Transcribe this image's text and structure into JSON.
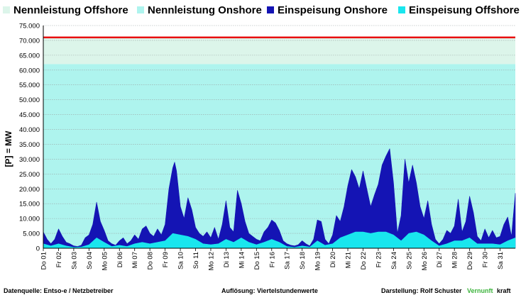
{
  "chart_data": {
    "type": "area",
    "ylabel": "[P] = MW",
    "ylim": [
      0,
      75000
    ],
    "yticks": [
      "0",
      "5.000",
      "10.000",
      "15.000",
      "20.000",
      "25.000",
      "30.000",
      "35.000",
      "40.000",
      "45.000",
      "50.000",
      "55.000",
      "60.000",
      "65.000",
      "70.000",
      "75.000"
    ],
    "ytick_values": [
      0,
      5000,
      10000,
      15000,
      20000,
      25000,
      30000,
      35000,
      40000,
      45000,
      50000,
      55000,
      60000,
      65000,
      70000,
      75000
    ],
    "xticks": [
      "Do 01",
      "Fr 02",
      "Sa 03",
      "So 04",
      "Mo 05",
      "Di 06",
      "Mi 07",
      "Do 08",
      "Fr 09",
      "Sa 10",
      "So 11",
      "Mo 12",
      "Di 13",
      "Mi 14",
      "Do 15",
      "Fr 16",
      "Sa 17",
      "So 18",
      "Mo 19",
      "Di 20",
      "Mi 21",
      "Do 22",
      "Fr 23",
      "Sa 24",
      "So 25",
      "Mo 26",
      "Di 27",
      "Mi 28",
      "Do 29",
      "Fr 30",
      "Sa 31"
    ],
    "x_days": [
      1,
      2,
      3,
      4,
      5,
      6,
      7,
      8,
      9,
      10,
      11,
      12,
      13,
      14,
      15,
      16,
      17,
      18,
      19,
      20,
      21,
      22,
      23,
      24,
      25,
      26,
      27,
      28,
      29,
      30,
      31
    ],
    "x_range": [
      1,
      32
    ],
    "legend": [
      {
        "name": "Nennleistung Offshore",
        "color": "#dcf5ea"
      },
      {
        "name": "Nennleistung Onshore",
        "color": "#aef4ee"
      },
      {
        "name": "Einspeisung Onshore",
        "color": "#1414b4"
      },
      {
        "name": "Einspeisung Offshore",
        "color": "#19e6ee"
      }
    ],
    "nennleistung_onshore": 62000,
    "nennleistung_total": 71000,
    "total_line_color": "#e81010",
    "series_total": {
      "name": "Einspeisung Onshore",
      "points": [
        [
          1.0,
          5500
        ],
        [
          1.25,
          3000
        ],
        [
          1.5,
          1500
        ],
        [
          1.75,
          3000
        ],
        [
          2.0,
          6500
        ],
        [
          2.25,
          4000
        ],
        [
          2.5,
          2000
        ],
        [
          2.75,
          1500
        ],
        [
          3.0,
          800
        ],
        [
          3.25,
          600
        ],
        [
          3.5,
          1000
        ],
        [
          3.75,
          3500
        ],
        [
          4.0,
          4500
        ],
        [
          4.25,
          8000
        ],
        [
          4.5,
          15500
        ],
        [
          4.75,
          9000
        ],
        [
          5.0,
          6000
        ],
        [
          5.25,
          2500
        ],
        [
          5.5,
          1500
        ],
        [
          5.75,
          1000
        ],
        [
          6.0,
          2500
        ],
        [
          6.25,
          3500
        ],
        [
          6.5,
          1500
        ],
        [
          6.75,
          2500
        ],
        [
          7.0,
          4500
        ],
        [
          7.25,
          3000
        ],
        [
          7.5,
          6500
        ],
        [
          7.75,
          7500
        ],
        [
          8.0,
          5000
        ],
        [
          8.25,
          4000
        ],
        [
          8.5,
          6500
        ],
        [
          8.75,
          4500
        ],
        [
          9.0,
          8000
        ],
        [
          9.25,
          20000
        ],
        [
          9.5,
          27000
        ],
        [
          9.625,
          29000
        ],
        [
          9.75,
          26000
        ],
        [
          10.0,
          14000
        ],
        [
          10.25,
          10000
        ],
        [
          10.5,
          17000
        ],
        [
          10.75,
          13000
        ],
        [
          11.0,
          7000
        ],
        [
          11.25,
          5000
        ],
        [
          11.5,
          4000
        ],
        [
          11.75,
          5500
        ],
        [
          12.0,
          3500
        ],
        [
          12.25,
          7000
        ],
        [
          12.5,
          3000
        ],
        [
          12.75,
          8000
        ],
        [
          13.0,
          16000
        ],
        [
          13.25,
          7000
        ],
        [
          13.5,
          5500
        ],
        [
          13.75,
          19500
        ],
        [
          14.0,
          15000
        ],
        [
          14.25,
          9000
        ],
        [
          14.5,
          5000
        ],
        [
          14.75,
          4000
        ],
        [
          15.0,
          3000
        ],
        [
          15.25,
          2500
        ],
        [
          15.5,
          5500
        ],
        [
          15.75,
          7000
        ],
        [
          16.0,
          9500
        ],
        [
          16.25,
          8500
        ],
        [
          16.5,
          6000
        ],
        [
          16.75,
          2500
        ],
        [
          17.0,
          1500
        ],
        [
          17.25,
          1000
        ],
        [
          17.5,
          800
        ],
        [
          17.75,
          1200
        ],
        [
          18.0,
          2500
        ],
        [
          18.25,
          1500
        ],
        [
          18.5,
          800
        ],
        [
          18.75,
          3000
        ],
        [
          19.0,
          9500
        ],
        [
          19.25,
          9000
        ],
        [
          19.5,
          3000
        ],
        [
          19.75,
          1500
        ],
        [
          20.0,
          4500
        ],
        [
          20.25,
          11000
        ],
        [
          20.5,
          9000
        ],
        [
          20.75,
          14000
        ],
        [
          21.0,
          21000
        ],
        [
          21.25,
          26500
        ],
        [
          21.5,
          24000
        ],
        [
          21.75,
          20000
        ],
        [
          22.0,
          26000
        ],
        [
          22.25,
          20000
        ],
        [
          22.5,
          14000
        ],
        [
          22.75,
          18000
        ],
        [
          23.0,
          21500
        ],
        [
          23.25,
          28000
        ],
        [
          23.5,
          31000
        ],
        [
          23.75,
          33500
        ],
        [
          24.0,
          22000
        ],
        [
          24.25,
          5000
        ],
        [
          24.5,
          11000
        ],
        [
          24.75,
          30000
        ],
        [
          25.0,
          22000
        ],
        [
          25.25,
          28000
        ],
        [
          25.5,
          22000
        ],
        [
          25.75,
          14000
        ],
        [
          26.0,
          10000
        ],
        [
          26.25,
          16000
        ],
        [
          26.5,
          8000
        ],
        [
          26.75,
          3000
        ],
        [
          27.0,
          1500
        ],
        [
          27.25,
          3000
        ],
        [
          27.5,
          6000
        ],
        [
          27.75,
          5000
        ],
        [
          28.0,
          7500
        ],
        [
          28.25,
          16500
        ],
        [
          28.5,
          5500
        ],
        [
          28.75,
          9000
        ],
        [
          29.0,
          17500
        ],
        [
          29.25,
          12000
        ],
        [
          29.5,
          4000
        ],
        [
          29.75,
          2500
        ],
        [
          30.0,
          6500
        ],
        [
          30.25,
          3500
        ],
        [
          30.5,
          6000
        ],
        [
          30.75,
          3500
        ],
        [
          31.0,
          4000
        ],
        [
          31.25,
          8000
        ],
        [
          31.5,
          10500
        ],
        [
          31.75,
          4000
        ],
        [
          32.0,
          18500
        ]
      ]
    },
    "series_offshore": {
      "name": "Einspeisung Offshore",
      "points": [
        [
          1.0,
          1500
        ],
        [
          1.5,
          800
        ],
        [
          2.0,
          1500
        ],
        [
          2.5,
          800
        ],
        [
          3.0,
          300
        ],
        [
          3.5,
          400
        ],
        [
          4.0,
          1200
        ],
        [
          4.5,
          3500
        ],
        [
          5.0,
          2000
        ],
        [
          5.5,
          600
        ],
        [
          6.0,
          1000
        ],
        [
          6.5,
          600
        ],
        [
          7.0,
          1500
        ],
        [
          7.5,
          2000
        ],
        [
          8.0,
          1500
        ],
        [
          8.5,
          2000
        ],
        [
          9.0,
          2500
        ],
        [
          9.5,
          5000
        ],
        [
          10.0,
          4500
        ],
        [
          10.5,
          4000
        ],
        [
          11.0,
          3000
        ],
        [
          11.5,
          1500
        ],
        [
          12.0,
          1200
        ],
        [
          12.5,
          1500
        ],
        [
          13.0,
          3000
        ],
        [
          13.5,
          2000
        ],
        [
          14.0,
          3500
        ],
        [
          14.5,
          2000
        ],
        [
          15.0,
          1200
        ],
        [
          15.5,
          2000
        ],
        [
          16.0,
          3000
        ],
        [
          16.5,
          2000
        ],
        [
          17.0,
          600
        ],
        [
          17.5,
          300
        ],
        [
          18.0,
          800
        ],
        [
          18.5,
          400
        ],
        [
          19.0,
          2500
        ],
        [
          19.5,
          1000
        ],
        [
          20.0,
          1500
        ],
        [
          20.5,
          3500
        ],
        [
          21.0,
          4500
        ],
        [
          21.5,
          5500
        ],
        [
          22.0,
          5500
        ],
        [
          22.5,
          5000
        ],
        [
          23.0,
          5500
        ],
        [
          23.5,
          5500
        ],
        [
          24.0,
          4500
        ],
        [
          24.5,
          2500
        ],
        [
          25.0,
          5000
        ],
        [
          25.5,
          5500
        ],
        [
          26.0,
          4500
        ],
        [
          26.5,
          2500
        ],
        [
          27.0,
          800
        ],
        [
          27.5,
          1500
        ],
        [
          28.0,
          2500
        ],
        [
          28.5,
          2500
        ],
        [
          29.0,
          3500
        ],
        [
          29.5,
          1500
        ],
        [
          30.0,
          1500
        ],
        [
          30.5,
          1500
        ],
        [
          31.0,
          1200
        ],
        [
          31.5,
          2500
        ],
        [
          32.0,
          3500
        ]
      ]
    }
  },
  "footer": {
    "source": "Datenquelle:  Entso-e  / Netzbetreiber",
    "resolution": "Auflösung: Viertelstundenwerte",
    "author_prefix": "Darstellung:  Rolf Schuster",
    "brand_green": "Vernunft",
    "brand_black": "kraft"
  }
}
